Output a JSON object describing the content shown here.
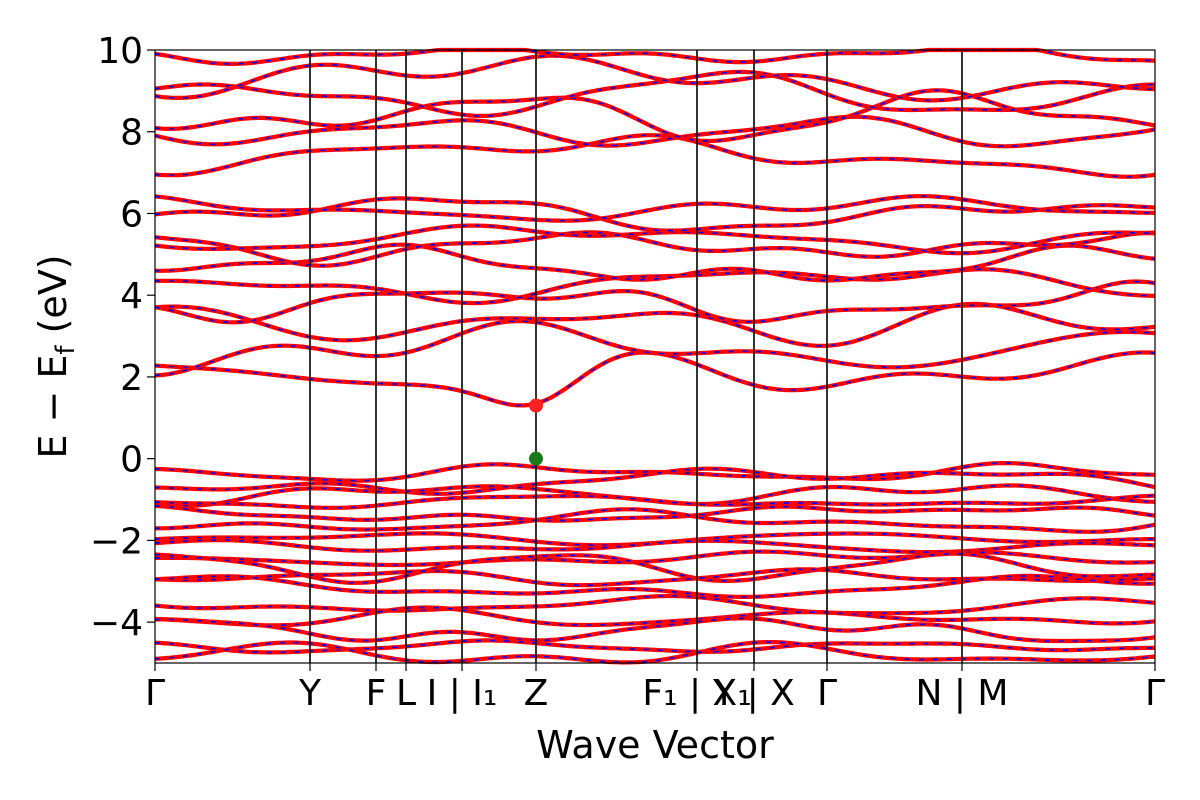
{
  "chart_data": {
    "type": "line",
    "title": "",
    "xlabel": "Wave Vector",
    "ylabel": "E − E_f (eV)",
    "ylabel_parts": {
      "main": "E − E",
      "sub": "f",
      "unit": " (eV)"
    },
    "ylim": [
      -5,
      10
    ],
    "yticks": [
      -4,
      -2,
      0,
      2,
      4,
      6,
      8,
      10
    ],
    "xlim": [
      0,
      1
    ],
    "kpath_positions": [
      0,
      0.155,
      0.221,
      0.251,
      0.307,
      0.381,
      0.542,
      0.599,
      0.672,
      0.807,
      1.0
    ],
    "kpath_labels": [
      {
        "text": "Γ",
        "pos": 0.0
      },
      {
        "text": "Y",
        "pos": 0.155
      },
      {
        "text": "F",
        "pos": 0.221
      },
      {
        "text": "L",
        "pos": 0.251
      },
      {
        "text": "I | I₁",
        "pos": 0.307
      },
      {
        "text": "Z",
        "pos": 0.381
      },
      {
        "text": "F₁ | X₁",
        "pos": 0.542
      },
      {
        "text": "Y | X",
        "pos": 0.599
      },
      {
        "text": "Γ",
        "pos": 0.672
      },
      {
        "text": "N | M",
        "pos": 0.807
      },
      {
        "text": "Γ",
        "pos": 1.0
      }
    ],
    "markers": [
      {
        "name": "CBM",
        "x": 0.381,
        "y": 1.3,
        "color": "#ff2020"
      },
      {
        "name": "VBM",
        "x": 0.381,
        "y": 0.0,
        "color": "#1a7a1a"
      }
    ],
    "series_style": {
      "primary_color": "#ff0000",
      "overlay_color": "#0000ff",
      "overlay_dashed": true
    },
    "conduction_bands": [
      2.1,
      2.7,
      3.3,
      3.8,
      4.3,
      4.7,
      5.2,
      5.4,
      6.0,
      6.1,
      7.4,
      8.0,
      8.4,
      8.9,
      9.3,
      9.9
    ],
    "valence_bands": [
      -0.35,
      -0.55,
      -0.85,
      -1.05,
      -1.35,
      -1.55,
      -1.95,
      -2.15,
      -2.45,
      -2.65,
      -2.9,
      -3.15,
      -3.6,
      -3.9,
      -4.2,
      -4.6,
      -4.8
    ],
    "grid": false,
    "legend": "none"
  }
}
